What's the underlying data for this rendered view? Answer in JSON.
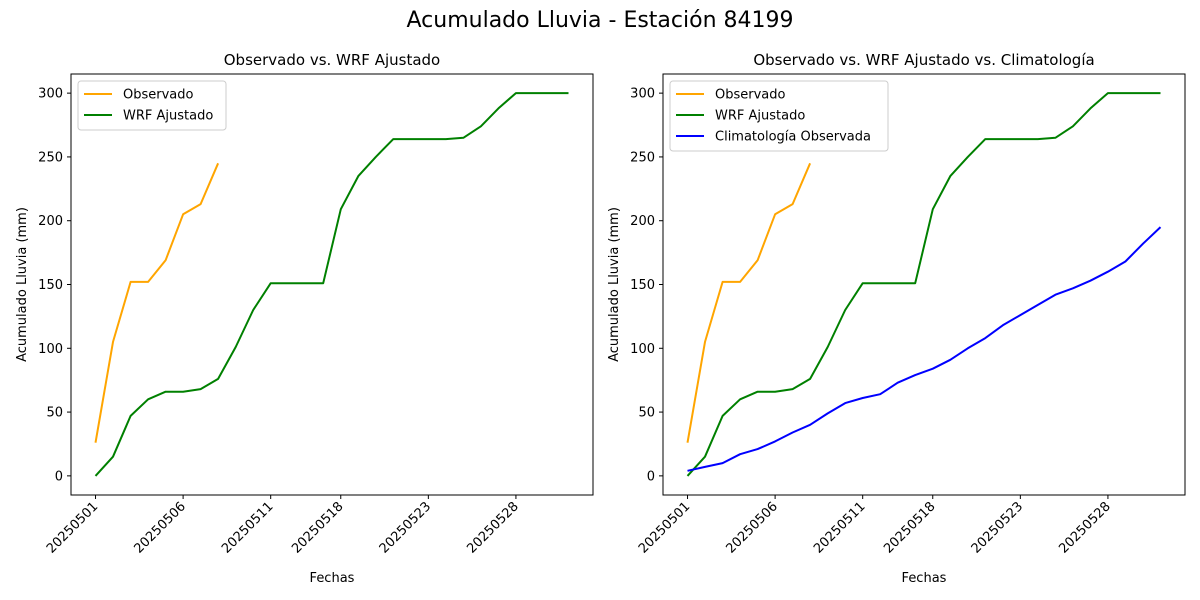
{
  "figure_title": "Acumulado Lluvia - Estación 84199",
  "colors": {
    "observado": "#ffa500",
    "wrf": "#008000",
    "clima": "#0000ff"
  },
  "chart_data": [
    {
      "type": "line",
      "title": "Observado vs. WRF Ajustado",
      "xlabel": "Fechas",
      "ylabel": "Acumulado Lluvia (mm)",
      "ylim": [
        -15,
        315
      ],
      "yticks": [
        0,
        50,
        100,
        150,
        200,
        250,
        300
      ],
      "xticks": [
        "20250501",
        "20250506",
        "20250511",
        "20250518",
        "20250523",
        "20250528"
      ],
      "grid": false,
      "legend": "top-left",
      "series": [
        {
          "name": "Observado",
          "color": "#ffa500",
          "x": [
            0,
            1,
            2,
            3,
            4,
            5,
            6,
            7
          ],
          "y": [
            26,
            105,
            152,
            152,
            169,
            205,
            213,
            245
          ]
        },
        {
          "name": "WRF Ajustado",
          "color": "#008000",
          "x": [
            0,
            1,
            2,
            3,
            4,
            5,
            6,
            7,
            8,
            9,
            10,
            11,
            12,
            13,
            14,
            15,
            16,
            17,
            18,
            19,
            20,
            21,
            22,
            23,
            24,
            25,
            26,
            27
          ],
          "y": [
            0,
            15,
            47,
            60,
            66,
            66,
            68,
            76,
            101,
            130,
            151,
            151,
            151,
            151,
            209,
            235,
            250,
            264,
            264,
            264,
            264,
            265,
            274,
            288,
            300,
            300,
            300,
            300
          ]
        }
      ]
    },
    {
      "type": "line",
      "title": "Observado vs. WRF Ajustado vs. Climatología",
      "xlabel": "Fechas",
      "ylabel": "Acumulado Lluvia (mm)",
      "ylim": [
        -15,
        315
      ],
      "yticks": [
        0,
        50,
        100,
        150,
        200,
        250,
        300
      ],
      "xticks": [
        "20250501",
        "20250506",
        "20250511",
        "20250518",
        "20250523",
        "20250528"
      ],
      "grid": false,
      "legend": "top-left",
      "series": [
        {
          "name": "Observado",
          "color": "#ffa500",
          "x": [
            0,
            1,
            2,
            3,
            4,
            5,
            6,
            7
          ],
          "y": [
            26,
            105,
            152,
            152,
            169,
            205,
            213,
            245
          ]
        },
        {
          "name": "WRF Ajustado",
          "color": "#008000",
          "x": [
            0,
            1,
            2,
            3,
            4,
            5,
            6,
            7,
            8,
            9,
            10,
            11,
            12,
            13,
            14,
            15,
            16,
            17,
            18,
            19,
            20,
            21,
            22,
            23,
            24,
            25,
            26,
            27
          ],
          "y": [
            0,
            15,
            47,
            60,
            66,
            66,
            68,
            76,
            101,
            130,
            151,
            151,
            151,
            151,
            209,
            235,
            250,
            264,
            264,
            264,
            264,
            265,
            274,
            288,
            300,
            300,
            300,
            300
          ]
        },
        {
          "name": "Climatología Observada",
          "color": "#0000ff",
          "x": [
            0,
            1,
            2,
            3,
            4,
            5,
            6,
            7,
            8,
            9,
            10,
            11,
            12,
            13,
            14,
            15,
            16,
            17,
            18,
            19,
            20,
            21,
            22,
            23,
            24,
            25,
            26,
            27
          ],
          "y": [
            4,
            7,
            10,
            17,
            21,
            27,
            34,
            40,
            49,
            57,
            61,
            64,
            73,
            79,
            84,
            91,
            100,
            108,
            118,
            126,
            134,
            142,
            147,
            153,
            160,
            168,
            182,
            195
          ]
        }
      ]
    }
  ]
}
